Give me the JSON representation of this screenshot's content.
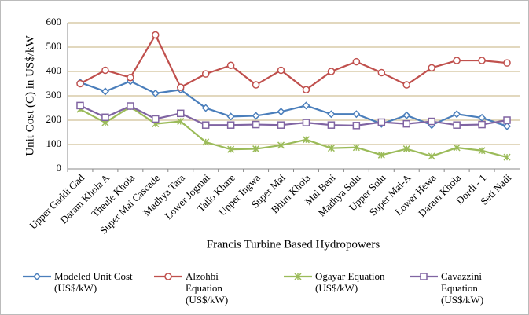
{
  "chart_data": {
    "type": "line",
    "y_label": "Unit Cost (C) in US$/kW",
    "x_label": "Francis Turbine Based Hydropowers",
    "categories": [
      "Upper Gaddi Gad",
      "Daram Khola A",
      "Theule Khola",
      "Super Mai Cascade",
      "Madhya Tara",
      "Lower Jogmai",
      "Tallo Khare",
      "Upper Ingwa",
      "Super Mai",
      "Bhim Khola",
      "Mai Beni",
      "Madhya Solu",
      "Upper Solu",
      "Super Mai-A",
      "Lower Hewa",
      "Daram Khola",
      "Dordi - 1",
      "Seti Nadi"
    ],
    "series": [
      {
        "name": "Modeled Unit Cost (US$/kW)",
        "color": "#4a7ebb",
        "marker": "diamond",
        "values": [
          355,
          318,
          360,
          310,
          325,
          250,
          215,
          218,
          235,
          260,
          225,
          225,
          185,
          220,
          180,
          225,
          210,
          175
        ]
      },
      {
        "name": "Alzohbi Equation (US$/kW)",
        "color": "#c0504d",
        "marker": "circle",
        "values": [
          350,
          405,
          375,
          550,
          335,
          390,
          425,
          345,
          405,
          325,
          400,
          440,
          395,
          345,
          415,
          445,
          445,
          435
        ]
      },
      {
        "name": "Ogayar Equation (US$/kW)",
        "color": "#9bbb59",
        "marker": "asterisk",
        "values": [
          245,
          190,
          255,
          185,
          195,
          110,
          80,
          82,
          97,
          120,
          85,
          88,
          57,
          82,
          52,
          87,
          75,
          48
        ]
      },
      {
        "name": "Cavazzini Equation (US$/kW)",
        "color": "#8064a2",
        "marker": "square",
        "values": [
          260,
          212,
          258,
          205,
          228,
          180,
          180,
          182,
          180,
          190,
          180,
          178,
          192,
          185,
          195,
          180,
          182,
          200
        ]
      }
    ],
    "ylim": [
      0,
      600
    ],
    "yticks": [
      0,
      100,
      200,
      300,
      400,
      500,
      600
    ],
    "grid": true,
    "legend": "bottom"
  }
}
